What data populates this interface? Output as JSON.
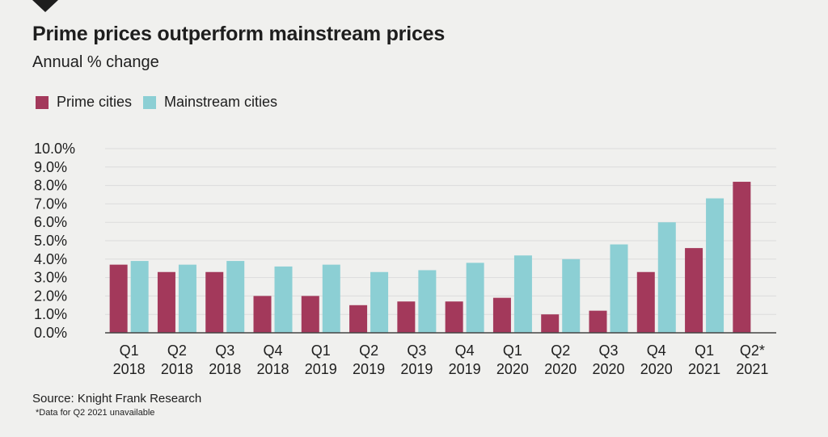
{
  "header": {
    "title": "Prime prices outperform mainstream prices",
    "subtitle": "Annual % change"
  },
  "footer": {
    "source": "Source: Knight Frank Research",
    "footnote": "*Data for Q2 2021 unavailable"
  },
  "colors": {
    "prime": "#a3395b",
    "mainstream": "#8ccfd4",
    "grid": "#dcdcdc",
    "axis": "#444444",
    "background": "#f0f0ee"
  },
  "icons": [
    "corner-triangle-icon"
  ],
  "chart_data": {
    "type": "bar",
    "title": "Prime prices outperform mainstream prices",
    "subtitle": "Annual % change",
    "xlabel": "",
    "ylabel": "",
    "ylim": [
      0,
      10
    ],
    "yticks": [
      "0.0%",
      "1.0%",
      "2.0%",
      "3.0%",
      "4.0%",
      "5.0%",
      "6.0%",
      "7.0%",
      "8.0%",
      "9.0%",
      "10.0%"
    ],
    "grid": true,
    "legend_position": "top-left",
    "categories": [
      [
        "Q1",
        "2018"
      ],
      [
        "Q2",
        "2018"
      ],
      [
        "Q3",
        "2018"
      ],
      [
        "Q4",
        "2018"
      ],
      [
        "Q1",
        "2019"
      ],
      [
        "Q2",
        "2019"
      ],
      [
        "Q3",
        "2019"
      ],
      [
        "Q4",
        "2019"
      ],
      [
        "Q1",
        "2020"
      ],
      [
        "Q2",
        "2020"
      ],
      [
        "Q3",
        "2020"
      ],
      [
        "Q4",
        "2020"
      ],
      [
        "Q1",
        "2021"
      ],
      [
        "Q2*",
        "2021"
      ]
    ],
    "series": [
      {
        "name": "Prime cities",
        "color": "#a3395b",
        "values": [
          3.7,
          3.3,
          3.3,
          2.0,
          2.0,
          1.5,
          1.7,
          1.7,
          1.9,
          1.0,
          1.2,
          3.3,
          4.6,
          8.2
        ]
      },
      {
        "name": "Mainstream cities",
        "color": "#8ccfd4",
        "values": [
          3.9,
          3.7,
          3.9,
          3.6,
          3.7,
          3.3,
          3.4,
          3.8,
          4.2,
          4.0,
          4.8,
          6.0,
          7.3,
          null
        ]
      }
    ]
  }
}
